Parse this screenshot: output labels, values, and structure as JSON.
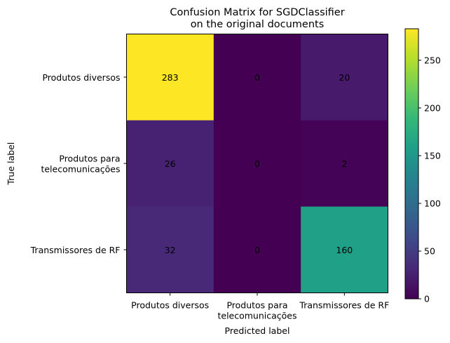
{
  "chart_data": {
    "type": "heatmap",
    "title_lines": [
      "Confusion Matrix for SGDClassifier",
      "on the original documents"
    ],
    "xlabel": "Predicted label",
    "ylabel": "True label",
    "x_categories": [
      [
        "Produtos diversos"
      ],
      [
        "Produtos para",
        "telecomunicações"
      ],
      [
        "Transmissores de RF"
      ]
    ],
    "y_categories": [
      [
        "Produtos diversos"
      ],
      [
        "Produtos para",
        "telecomunicações"
      ],
      [
        "Transmissores de RF"
      ]
    ],
    "matrix": [
      [
        283,
        0,
        20
      ],
      [
        26,
        0,
        2
      ],
      [
        32,
        0,
        160
      ]
    ],
    "colormap": "viridis",
    "vmin": 0,
    "vmax": 283,
    "colorbar_ticks": [
      0,
      50,
      100,
      150,
      200,
      250
    ],
    "text_color_light": "#fde725",
    "text_color_dark": "#440154"
  }
}
